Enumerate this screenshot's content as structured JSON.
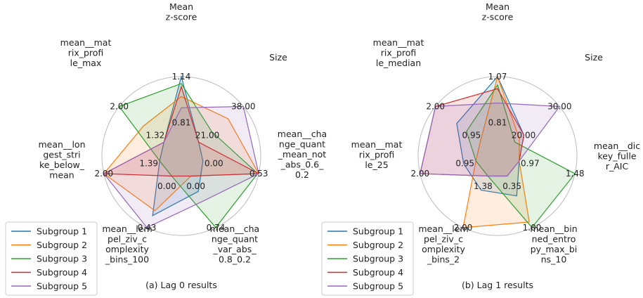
{
  "colors": {
    "Subgroup 1": "#1f77b4",
    "Subgroup 2": "#ff7f0e",
    "Subgroup 3": "#2ca02c",
    "Subgroup 4": "#d62728",
    "Subgroup 5": "#9467bd",
    "ring": "#bbbbbb"
  },
  "chart_data": [
    {
      "type": "radar",
      "caption": "(a) Lag 0 results",
      "axes": [
        {
          "label": "Mean\nz-score",
          "ticks": [
            "0.81",
            "1.14"
          ],
          "min": 0.81,
          "max": 1.14
        },
        {
          "label": "Size",
          "ticks": [
            "21.00",
            "38.00"
          ],
          "min": 21.0,
          "max": 38.0
        },
        {
          "label": "mean__cha\nnge_quant\n_mean_not\n_abs_0.6_\n0.2",
          "ticks": [
            "0.00",
            "0.53"
          ],
          "min": 0.0,
          "max": 0.53
        },
        {
          "label": "mean__cha\nnge_quant\n_var_abs_\n0.8_0.2",
          "ticks": [
            "0.00",
            "0.74"
          ],
          "min": 0.0,
          "max": 0.74
        },
        {
          "label": "mean__lem\npel_ziv_c\nomplexity\n_bins_100",
          "ticks": [
            "0.00",
            "0.43"
          ],
          "min": 0.0,
          "max": 0.43
        },
        {
          "label": "mean__lon\ngest_stri\nke_below_\nmean",
          "ticks": [
            "1.39",
            "2.00"
          ],
          "min": 1.39,
          "max": 2.0
        },
        {
          "label": "mean__mat\nrix_profi\nle_max",
          "ticks": [
            "1.32",
            "2.00"
          ],
          "min": 1.32,
          "max": 2.0
        }
      ],
      "series": [
        {
          "name": "Subgroup 1",
          "values": [
            1.14,
            21.0,
            0.0,
            0.22,
            0.33,
            1.39,
            1.32
          ]
        },
        {
          "name": "Subgroup 2",
          "values": [
            1.025,
            32.2,
            0.53,
            0.0,
            0.29,
            2.0,
            1.63
          ]
        },
        {
          "name": "Subgroup 3",
          "values": [
            1.1,
            26.0,
            0.52,
            0.74,
            0.0,
            1.39,
            2.0
          ]
        },
        {
          "name": "Subgroup 4",
          "values": [
            1.082,
            21.0,
            0.53,
            0.0,
            0.0,
            2.0,
            1.32
          ]
        },
        {
          "name": "Subgroup 5",
          "values": [
            0.96,
            38.0,
            0.53,
            0.36,
            0.43,
            2.0,
            1.32
          ]
        }
      ]
    },
    {
      "type": "radar",
      "caption": "(b) Lag 1 results",
      "axes": [
        {
          "label": "Mean\nz-score",
          "ticks": [
            "0.81",
            "1.07"
          ],
          "min": 0.81,
          "max": 1.07
        },
        {
          "label": "Size",
          "ticks": [
            "20.00",
            "30.00"
          ],
          "min": 20.0,
          "max": 30.0
        },
        {
          "label": "mean__dic\nkey_fulle\nr_AIC",
          "ticks": [
            "0.97",
            "1.48"
          ],
          "min": 0.97,
          "max": 1.48
        },
        {
          "label": "mean__bin\nned_entro\npy_max_bi\nns_10",
          "ticks": [
            "0.35",
            "1.00"
          ],
          "min": 0.35,
          "max": 1.0
        },
        {
          "label": "mean__lem\npel_ziv_c\nomplexity\n_bins_2",
          "ticks": [
            "1.38",
            "2.00"
          ],
          "min": 1.38,
          "max": 2.0
        },
        {
          "label": "mean__mat\nrix_profi\nle_25",
          "ticks": [
            "0.95",
            "2.00"
          ],
          "min": 0.95,
          "max": 2.0
        },
        {
          "label": "mean__mat\nrix_profi\nle_median",
          "ticks": [
            "0.95",
            "2.00"
          ],
          "min": 0.95,
          "max": 2.0
        }
      ],
      "series": [
        {
          "name": "Subgroup 1",
          "values": [
            1.07,
            22.0,
            0.97,
            0.6,
            1.55,
            1.18,
            1.5
          ]
        },
        {
          "name": "Subgroup 2",
          "values": [
            1.07,
            21.0,
            0.97,
            0.93,
            2.0,
            0.95,
            0.95
          ]
        },
        {
          "name": "Subgroup 3",
          "values": [
            1.032,
            20.0,
            1.48,
            1.0,
            1.38,
            0.95,
            1.27
          ]
        },
        {
          "name": "Subgroup 4",
          "values": [
            1.015,
            22.0,
            0.97,
            0.35,
            1.38,
            2.0,
            2.0
          ]
        },
        {
          "name": "Subgroup 5",
          "values": [
            0.95,
            30.0,
            0.97,
            0.35,
            1.38,
            2.0,
            2.0
          ]
        }
      ]
    }
  ],
  "legend": [
    "Subgroup 1",
    "Subgroup 2",
    "Subgroup 3",
    "Subgroup 4",
    "Subgroup 5"
  ]
}
